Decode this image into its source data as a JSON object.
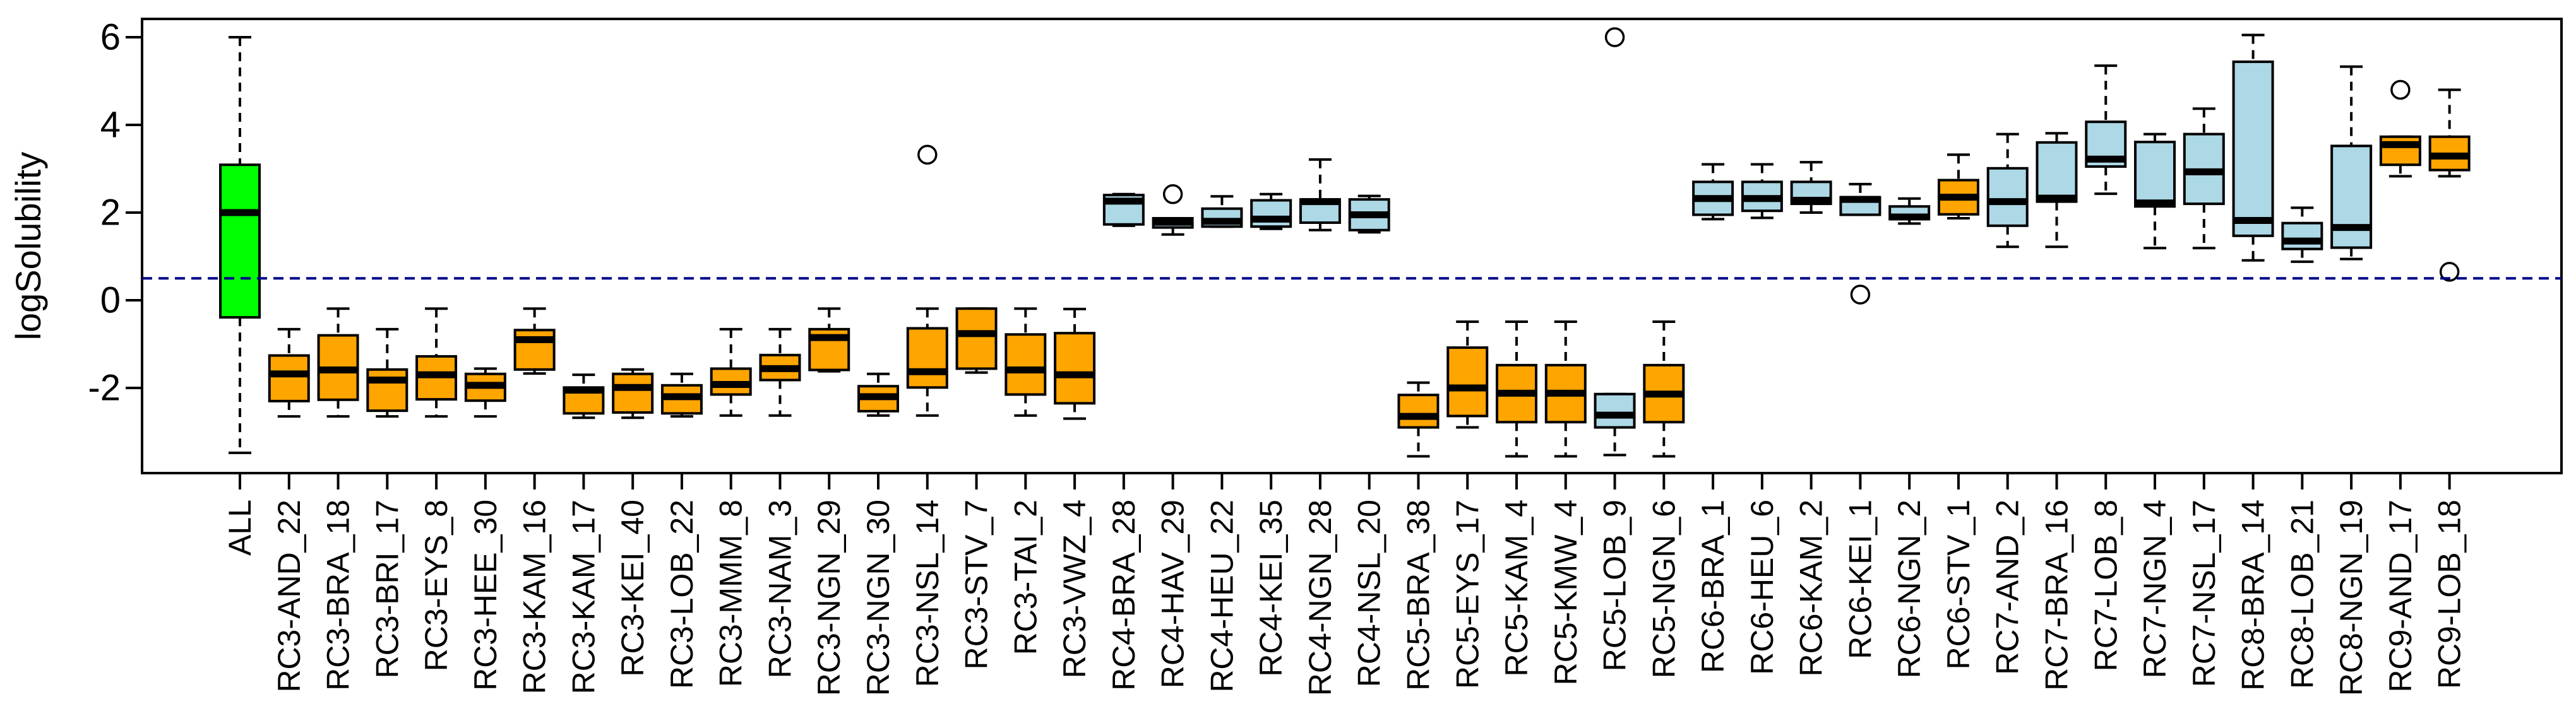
{
  "chart_data": {
    "type": "boxplot",
    "title": "",
    "ylabel": "logSolubility",
    "xlabel": "",
    "ylim": [
      -3.94,
      6.42
    ],
    "yticks": [
      6,
      4,
      2,
      0,
      -2
    ],
    "grid": false,
    "legend": "none",
    "reference_line": {
      "y": 0.5,
      "color": "#00008B",
      "style": "dashed"
    },
    "palette": {
      "green": "#00FF00",
      "orange": "#FFA500",
      "lightblue": "#ADD8E6"
    },
    "axis_color": "#000000",
    "boxes": [
      {
        "label": "ALL",
        "color": "green",
        "whislo": -3.48,
        "q1": -0.39,
        "med": 2.0,
        "q3": 3.09,
        "whishi": 6.0,
        "outliers": []
      },
      {
        "label": "RC3-AND_22",
        "color": "orange",
        "whislo": -2.65,
        "q1": -2.3,
        "med": -1.68,
        "q3": -1.26,
        "whishi": -0.66,
        "outliers": []
      },
      {
        "label": "RC3-BRA_18",
        "color": "orange",
        "whislo": -2.65,
        "q1": -2.27,
        "med": -1.59,
        "q3": -0.8,
        "whishi": -0.19,
        "outliers": []
      },
      {
        "label": "RC3-BRI_17",
        "color": "orange",
        "whislo": -2.65,
        "q1": -2.52,
        "med": -1.82,
        "q3": -1.58,
        "whishi": -0.66,
        "outliers": []
      },
      {
        "label": "RC3-EYS_8",
        "color": "orange",
        "whislo": -2.65,
        "q1": -2.26,
        "med": -1.7,
        "q3": -1.28,
        "whishi": -0.19,
        "outliers": []
      },
      {
        "label": "RC3-HEE_30",
        "color": "orange",
        "whislo": -2.65,
        "q1": -2.29,
        "med": -1.94,
        "q3": -1.68,
        "whishi": -1.56,
        "outliers": []
      },
      {
        "label": "RC3-KAM_16",
        "color": "orange",
        "whislo": -1.67,
        "q1": -1.58,
        "med": -0.9,
        "q3": -0.68,
        "whishi": -0.19,
        "outliers": []
      },
      {
        "label": "RC3-KAM_17",
        "color": "orange",
        "whislo": -2.68,
        "q1": -2.58,
        "med": -2.05,
        "q3": -1.99,
        "whishi": -1.7,
        "outliers": []
      },
      {
        "label": "RC3-KEI_40",
        "color": "orange",
        "whislo": -2.68,
        "q1": -2.56,
        "med": -1.99,
        "q3": -1.68,
        "whishi": -1.58,
        "outliers": []
      },
      {
        "label": "RC3-LOB_22",
        "color": "orange",
        "whislo": -2.65,
        "q1": -2.58,
        "med": -2.2,
        "q3": -1.94,
        "whishi": -1.68,
        "outliers": []
      },
      {
        "label": "RC3-MMM_8",
        "color": "orange",
        "whislo": -2.63,
        "q1": -2.15,
        "med": -1.92,
        "q3": -1.56,
        "whishi": -0.66,
        "outliers": []
      },
      {
        "label": "RC3-NAM_3",
        "color": "orange",
        "whislo": -2.63,
        "q1": -1.82,
        "med": -1.56,
        "q3": -1.25,
        "whishi": -0.66,
        "outliers": []
      },
      {
        "label": "RC3-NGN_29",
        "color": "orange",
        "whislo": -1.62,
        "q1": -1.59,
        "med": -0.85,
        "q3": -0.66,
        "whishi": -0.19,
        "outliers": []
      },
      {
        "label": "RC3-NGN_30",
        "color": "orange",
        "whislo": -2.63,
        "q1": -2.53,
        "med": -2.2,
        "q3": -1.96,
        "whishi": -1.68,
        "outliers": []
      },
      {
        "label": "RC3-NSL_14",
        "color": "orange",
        "whislo": -2.63,
        "q1": -1.99,
        "med": -1.63,
        "q3": -0.64,
        "whishi": -0.19,
        "outliers": [
          3.32
        ]
      },
      {
        "label": "RC3-STV_7",
        "color": "orange",
        "whislo": -1.65,
        "q1": -1.56,
        "med": -0.76,
        "q3": -0.19,
        "whishi": -0.19,
        "outliers": []
      },
      {
        "label": "RC3-TAI_2",
        "color": "orange",
        "whislo": -2.63,
        "q1": -2.15,
        "med": -1.59,
        "q3": -0.78,
        "whishi": -0.19,
        "outliers": []
      },
      {
        "label": "RC3-VWZ_4",
        "color": "orange",
        "whislo": -2.7,
        "q1": -2.35,
        "med": -1.7,
        "q3": -0.75,
        "whishi": -0.2,
        "outliers": []
      },
      {
        "label": "RC4-BRA_28",
        "color": "lightblue",
        "whislo": 1.7,
        "q1": 1.73,
        "med": 2.26,
        "q3": 2.4,
        "whishi": 2.42,
        "outliers": []
      },
      {
        "label": "RC4-HAV_29",
        "color": "lightblue",
        "whislo": 1.5,
        "q1": 1.66,
        "med": 1.78,
        "q3": 1.87,
        "whishi": 1.87,
        "outliers": [
          2.42
        ]
      },
      {
        "label": "RC4-HEU_22",
        "color": "lightblue",
        "whislo": 1.68,
        "q1": 1.68,
        "med": 1.8,
        "q3": 2.09,
        "whishi": 2.37,
        "outliers": []
      },
      {
        "label": "RC4-KEI_35",
        "color": "lightblue",
        "whislo": 1.63,
        "q1": 1.68,
        "med": 1.85,
        "q3": 2.28,
        "whishi": 2.42,
        "outliers": []
      },
      {
        "label": "RC4-NGN_28",
        "color": "lightblue",
        "whislo": 1.6,
        "q1": 1.77,
        "med": 2.25,
        "q3": 2.3,
        "whishi": 3.21,
        "outliers": []
      },
      {
        "label": "RC4-NSL_20",
        "color": "lightblue",
        "whislo": 1.55,
        "q1": 1.6,
        "med": 1.95,
        "q3": 2.3,
        "whishi": 2.38,
        "outliers": []
      },
      {
        "label": "RC5-BRA_38",
        "color": "orange",
        "whislo": -3.56,
        "q1": -2.9,
        "med": -2.65,
        "q3": -2.16,
        "whishi": -1.88,
        "outliers": []
      },
      {
        "label": "RC5-EYS_17",
        "color": "orange",
        "whislo": -2.9,
        "q1": -2.64,
        "med": -2.0,
        "q3": -1.08,
        "whishi": -0.49,
        "outliers": []
      },
      {
        "label": "RC5-KAM_4",
        "color": "orange",
        "whislo": -3.56,
        "q1": -2.78,
        "med": -2.12,
        "q3": -1.48,
        "whishi": -0.49,
        "outliers": []
      },
      {
        "label": "RC5-KMW_4",
        "color": "orange",
        "whislo": -3.56,
        "q1": -2.78,
        "med": -2.12,
        "q3": -1.48,
        "whishi": -0.49,
        "outliers": []
      },
      {
        "label": "RC5-LOB_9",
        "color": "lightblue",
        "whislo": -3.53,
        "q1": -2.9,
        "med": -2.62,
        "q3": -2.14,
        "whishi": -2.14,
        "outliers": [
          6.0
        ]
      },
      {
        "label": "RC5-NGN_6",
        "color": "orange",
        "whislo": -3.56,
        "q1": -2.78,
        "med": -2.14,
        "q3": -1.48,
        "whishi": -0.49,
        "outliers": []
      },
      {
        "label": "RC6-BRA_1",
        "color": "lightblue",
        "whislo": 1.85,
        "q1": 1.95,
        "med": 2.32,
        "q3": 2.7,
        "whishi": 3.1,
        "outliers": []
      },
      {
        "label": "RC6-HEU_6",
        "color": "lightblue",
        "whislo": 1.88,
        "q1": 2.04,
        "med": 2.32,
        "q3": 2.7,
        "whishi": 3.1,
        "outliers": []
      },
      {
        "label": "RC6-KAM_2",
        "color": "lightblue",
        "whislo": 2.0,
        "q1": 2.2,
        "med": 2.28,
        "q3": 2.7,
        "whishi": 3.15,
        "outliers": []
      },
      {
        "label": "RC6-KEI_1",
        "color": "lightblue",
        "whislo": 1.95,
        "q1": 1.95,
        "med": 2.3,
        "q3": 2.35,
        "whishi": 2.65,
        "outliers": [
          0.13
        ]
      },
      {
        "label": "RC6-NGN_2",
        "color": "lightblue",
        "whislo": 1.75,
        "q1": 1.85,
        "med": 1.9,
        "q3": 2.14,
        "whishi": 2.32,
        "outliers": []
      },
      {
        "label": "RC6-STV_1",
        "color": "orange",
        "whislo": 1.87,
        "q1": 1.96,
        "med": 2.35,
        "q3": 2.74,
        "whishi": 3.32,
        "outliers": []
      },
      {
        "label": "RC7-AND_2",
        "color": "lightblue",
        "whislo": 1.22,
        "q1": 1.7,
        "med": 2.25,
        "q3": 3.01,
        "whishi": 3.79,
        "outliers": []
      },
      {
        "label": "RC7-BRA_16",
        "color": "lightblue",
        "whislo": 1.22,
        "q1": 2.25,
        "med": 2.33,
        "q3": 3.6,
        "whishi": 3.81,
        "outliers": []
      },
      {
        "label": "RC7-LOB_8",
        "color": "lightblue",
        "whislo": 2.43,
        "q1": 3.05,
        "med": 3.22,
        "q3": 4.07,
        "whishi": 5.35,
        "outliers": []
      },
      {
        "label": "RC7-NGN_4",
        "color": "lightblue",
        "whislo": 1.19,
        "q1": 2.14,
        "med": 2.22,
        "q3": 3.61,
        "whishi": 3.79,
        "outliers": []
      },
      {
        "label": "RC7-NSL_17",
        "color": "lightblue",
        "whislo": 1.19,
        "q1": 2.2,
        "med": 2.93,
        "q3": 3.79,
        "whishi": 4.37,
        "outliers": []
      },
      {
        "label": "RC8-BRA_14",
        "color": "lightblue",
        "whislo": 0.91,
        "q1": 1.47,
        "med": 1.82,
        "q3": 5.44,
        "whishi": 6.05,
        "outliers": []
      },
      {
        "label": "RC8-LOB_21",
        "color": "lightblue",
        "whislo": 0.88,
        "q1": 1.17,
        "med": 1.35,
        "q3": 1.76,
        "whishi": 2.11,
        "outliers": []
      },
      {
        "label": "RC8-NGN_19",
        "color": "lightblue",
        "whislo": 0.94,
        "q1": 1.2,
        "med": 1.66,
        "q3": 3.52,
        "whishi": 5.33,
        "outliers": []
      },
      {
        "label": "RC9-AND_17",
        "color": "orange",
        "whislo": 2.83,
        "q1": 3.09,
        "med": 3.55,
        "q3": 3.73,
        "whishi": 3.73,
        "outliers": [
          4.8
        ]
      },
      {
        "label": "RC9-LOB_18",
        "color": "orange",
        "whislo": 2.83,
        "q1": 2.97,
        "med": 3.29,
        "q3": 3.73,
        "whishi": 4.8,
        "outliers": [
          0.65
        ]
      }
    ]
  }
}
